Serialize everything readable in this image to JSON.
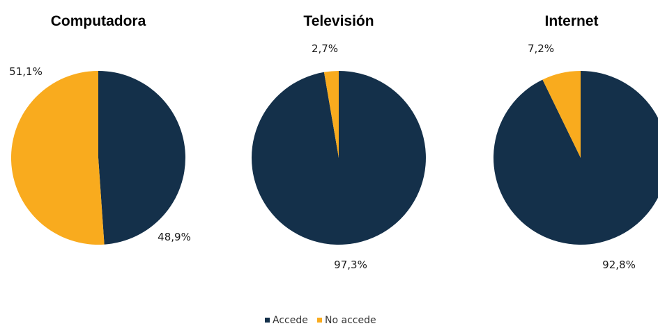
{
  "colors": {
    "accede": "#14304a",
    "no_accede": "#f9ab1e"
  },
  "legend": {
    "items": [
      "Accede",
      "No accede"
    ]
  },
  "chart_data": [
    {
      "type": "pie",
      "title": "Computadora",
      "series": [
        {
          "name": "Accede",
          "value": 48.9,
          "label": "48,9%"
        },
        {
          "name": "No accede",
          "value": 51.1,
          "label": "51,1%"
        }
      ]
    },
    {
      "type": "pie",
      "title": "Televisión",
      "series": [
        {
          "name": "Accede",
          "value": 97.3,
          "label": "97,3%"
        },
        {
          "name": "No accede",
          "value": 2.7,
          "label": "2,7%"
        }
      ]
    },
    {
      "type": "pie",
      "title": "Internet",
      "series": [
        {
          "name": "Accede",
          "value": 92.8,
          "label": "92,8%"
        },
        {
          "name": "No accede",
          "value": 7.2,
          "label": "7,2%"
        }
      ]
    }
  ]
}
